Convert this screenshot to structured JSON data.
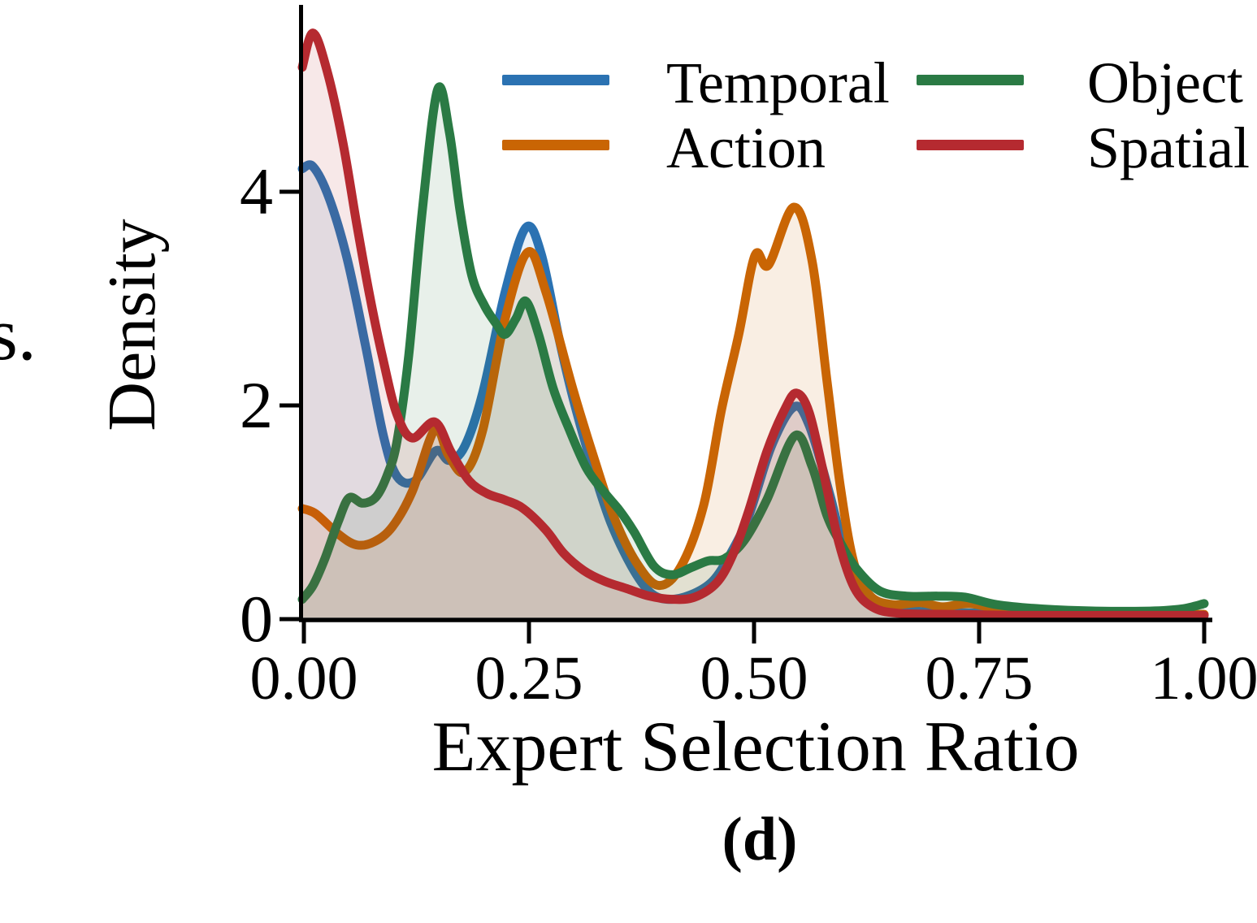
{
  "left_fragment": {
    "text": "s."
  },
  "chart_data": {
    "type": "area",
    "subtype": "kde-density",
    "xlabel": "Expert Selection Ratio",
    "ylabel": "Density",
    "caption": "(d)",
    "xlim": [
      0.0,
      1.0
    ],
    "ylim": [
      0.0,
      5.7
    ],
    "grid": false,
    "legend_position": "upper-center-two-columns",
    "xtick_values": [
      0.0,
      0.25,
      0.5,
      0.75,
      1.0
    ],
    "xtick_labels": [
      "0.00",
      "0.25",
      "0.50",
      "0.75",
      "1.00"
    ],
    "ytick_values": [
      0,
      2,
      4
    ],
    "ytick_labels": [
      "0",
      "2",
      "4"
    ],
    "series": [
      {
        "name": "Temporal",
        "color": "#2b72b2",
        "points": [
          [
            0,
            4.2
          ],
          [
            0.012,
            4.22
          ],
          [
            0.03,
            3.92
          ],
          [
            0.05,
            3.35
          ],
          [
            0.07,
            2.55
          ],
          [
            0.09,
            1.7
          ],
          [
            0.105,
            1.32
          ],
          [
            0.125,
            1.28
          ],
          [
            0.148,
            1.56
          ],
          [
            0.163,
            1.47
          ],
          [
            0.18,
            1.6
          ],
          [
            0.2,
            2.1
          ],
          [
            0.225,
            3.05
          ],
          [
            0.248,
            3.65
          ],
          [
            0.265,
            3.4
          ],
          [
            0.285,
            2.6
          ],
          [
            0.3,
            2.06
          ],
          [
            0.322,
            1.4
          ],
          [
            0.342,
            0.89
          ],
          [
            0.365,
            0.48
          ],
          [
            0.385,
            0.24
          ],
          [
            0.405,
            0.17
          ],
          [
            0.43,
            0.21
          ],
          [
            0.455,
            0.34
          ],
          [
            0.475,
            0.6
          ],
          [
            0.495,
            0.95
          ],
          [
            0.52,
            1.6
          ],
          [
            0.545,
            1.97
          ],
          [
            0.562,
            1.8
          ],
          [
            0.585,
            1.15
          ],
          [
            0.605,
            0.5
          ],
          [
            0.625,
            0.2
          ],
          [
            0.65,
            0.09
          ],
          [
            0.7,
            0.05
          ],
          [
            0.78,
            0.04
          ],
          [
            0.88,
            0.03
          ],
          [
            1.0,
            0.02
          ]
        ]
      },
      {
        "name": "Action",
        "color": "#c96504",
        "points": [
          [
            0,
            1.02
          ],
          [
            0.015,
            0.97
          ],
          [
            0.04,
            0.78
          ],
          [
            0.06,
            0.68
          ],
          [
            0.08,
            0.71
          ],
          [
            0.1,
            0.85
          ],
          [
            0.122,
            1.18
          ],
          [
            0.147,
            1.76
          ],
          [
            0.162,
            1.52
          ],
          [
            0.18,
            1.36
          ],
          [
            0.2,
            1.75
          ],
          [
            0.225,
            2.8
          ],
          [
            0.25,
            3.42
          ],
          [
            0.27,
            3.05
          ],
          [
            0.3,
            2.14
          ],
          [
            0.325,
            1.45
          ],
          [
            0.345,
            0.95
          ],
          [
            0.37,
            0.52
          ],
          [
            0.395,
            0.3
          ],
          [
            0.42,
            0.48
          ],
          [
            0.445,
            1.05
          ],
          [
            0.465,
            1.95
          ],
          [
            0.484,
            2.65
          ],
          [
            0.502,
            3.39
          ],
          [
            0.517,
            3.3
          ],
          [
            0.545,
            3.84
          ],
          [
            0.565,
            3.35
          ],
          [
            0.582,
            2.2
          ],
          [
            0.597,
            1.2
          ],
          [
            0.612,
            0.5
          ],
          [
            0.63,
            0.2
          ],
          [
            0.655,
            0.12
          ],
          [
            0.685,
            0.14
          ],
          [
            0.71,
            0.1
          ],
          [
            0.74,
            0.13
          ],
          [
            0.78,
            0.07
          ],
          [
            0.85,
            0.04
          ],
          [
            0.92,
            0.03
          ],
          [
            1.0,
            0.03
          ]
        ]
      },
      {
        "name": "Object",
        "color": "#2a7a44",
        "points": [
          [
            0,
            0.17
          ],
          [
            0.012,
            0.3
          ],
          [
            0.025,
            0.55
          ],
          [
            0.04,
            0.9
          ],
          [
            0.052,
            1.12
          ],
          [
            0.067,
            1.07
          ],
          [
            0.082,
            1.13
          ],
          [
            0.095,
            1.35
          ],
          [
            0.105,
            1.65
          ],
          [
            0.118,
            2.45
          ],
          [
            0.133,
            3.8
          ],
          [
            0.15,
            4.94
          ],
          [
            0.163,
            4.55
          ],
          [
            0.175,
            3.8
          ],
          [
            0.188,
            3.2
          ],
          [
            0.202,
            2.92
          ],
          [
            0.215,
            2.75
          ],
          [
            0.225,
            2.65
          ],
          [
            0.237,
            2.8
          ],
          [
            0.248,
            2.96
          ],
          [
            0.262,
            2.65
          ],
          [
            0.278,
            2.15
          ],
          [
            0.295,
            1.78
          ],
          [
            0.315,
            1.4
          ],
          [
            0.335,
            1.17
          ],
          [
            0.352,
            1.0
          ],
          [
            0.368,
            0.8
          ],
          [
            0.39,
            0.48
          ],
          [
            0.41,
            0.4
          ],
          [
            0.432,
            0.47
          ],
          [
            0.45,
            0.53
          ],
          [
            0.468,
            0.55
          ],
          [
            0.49,
            0.72
          ],
          [
            0.515,
            1.1
          ],
          [
            0.546,
            1.7
          ],
          [
            0.565,
            1.42
          ],
          [
            0.582,
            0.95
          ],
          [
            0.598,
            0.68
          ],
          [
            0.615,
            0.45
          ],
          [
            0.64,
            0.25
          ],
          [
            0.67,
            0.2
          ],
          [
            0.705,
            0.2
          ],
          [
            0.735,
            0.19
          ],
          [
            0.77,
            0.12
          ],
          [
            0.82,
            0.08
          ],
          [
            0.88,
            0.06
          ],
          [
            0.94,
            0.06
          ],
          [
            0.975,
            0.08
          ],
          [
            1.0,
            0.13
          ]
        ]
      },
      {
        "name": "Spatial",
        "color": "#b52a30",
        "points": [
          [
            0,
            5.15
          ],
          [
            0.012,
            5.47
          ],
          [
            0.028,
            5.1
          ],
          [
            0.045,
            4.45
          ],
          [
            0.06,
            3.7
          ],
          [
            0.075,
            3.0
          ],
          [
            0.09,
            2.4
          ],
          [
            0.105,
            1.9
          ],
          [
            0.122,
            1.68
          ],
          [
            0.147,
            1.83
          ],
          [
            0.165,
            1.55
          ],
          [
            0.185,
            1.28
          ],
          [
            0.205,
            1.16
          ],
          [
            0.225,
            1.1
          ],
          [
            0.245,
            1.02
          ],
          [
            0.27,
            0.82
          ],
          [
            0.29,
            0.6
          ],
          [
            0.312,
            0.44
          ],
          [
            0.335,
            0.34
          ],
          [
            0.36,
            0.27
          ],
          [
            0.385,
            0.2
          ],
          [
            0.41,
            0.17
          ],
          [
            0.435,
            0.19
          ],
          [
            0.46,
            0.33
          ],
          [
            0.478,
            0.6
          ],
          [
            0.495,
            1.0
          ],
          [
            0.515,
            1.55
          ],
          [
            0.535,
            1.95
          ],
          [
            0.548,
            2.1
          ],
          [
            0.562,
            1.92
          ],
          [
            0.578,
            1.35
          ],
          [
            0.595,
            0.7
          ],
          [
            0.612,
            0.28
          ],
          [
            0.632,
            0.1
          ],
          [
            0.66,
            0.04
          ],
          [
            0.72,
            0.03
          ],
          [
            0.8,
            0.02
          ],
          [
            0.9,
            0.02
          ],
          [
            1.0,
            0.02
          ]
        ]
      }
    ]
  }
}
